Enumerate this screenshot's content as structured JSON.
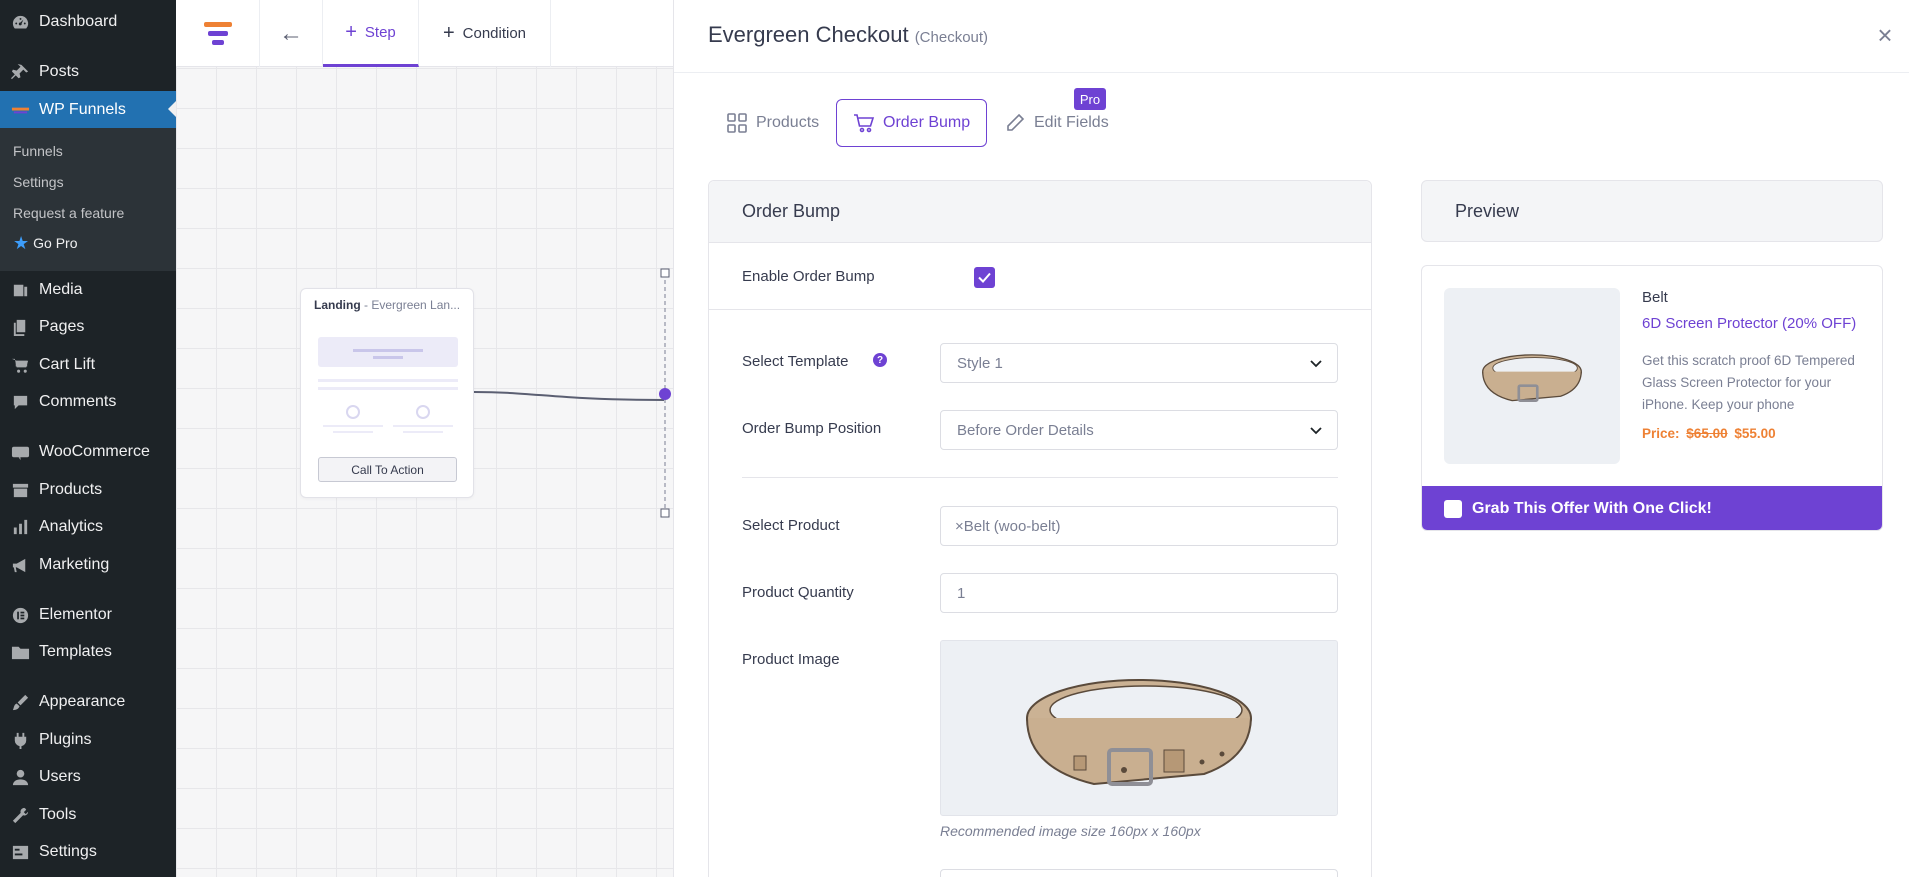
{
  "sidebar": {
    "items": [
      {
        "label": "Dashboard",
        "icon": "dashboard-icon"
      },
      {
        "label": "Posts",
        "icon": "pin-icon"
      },
      {
        "label": "WP Funnels",
        "icon": "wpfunnels-icon"
      },
      {
        "label": "Media",
        "icon": "media-icon"
      },
      {
        "label": "Pages",
        "icon": "pages-icon"
      },
      {
        "label": "Cart Lift",
        "icon": "cart-icon"
      },
      {
        "label": "Comments",
        "icon": "comment-icon"
      },
      {
        "label": "WooCommerce",
        "icon": "woo-icon"
      },
      {
        "label": "Products",
        "icon": "archive-icon"
      },
      {
        "label": "Analytics",
        "icon": "chart-icon"
      },
      {
        "label": "Marketing",
        "icon": "megaphone-icon"
      },
      {
        "label": "Elementor",
        "icon": "elementor-icon"
      },
      {
        "label": "Templates",
        "icon": "folder-icon"
      },
      {
        "label": "Appearance",
        "icon": "brush-icon"
      },
      {
        "label": "Plugins",
        "icon": "plugin-icon"
      },
      {
        "label": "Users",
        "icon": "user-icon"
      },
      {
        "label": "Tools",
        "icon": "wrench-icon"
      },
      {
        "label": "Settings",
        "icon": "settings-icon"
      }
    ],
    "submenu": [
      "Funnels",
      "Settings",
      "Request a feature",
      "Go Pro"
    ]
  },
  "canvas": {
    "tabs": {
      "step": "Step",
      "condition": "Condition"
    },
    "node": {
      "type": "Landing",
      "name": "- Evergreen Lan...",
      "cta": "Call To Action"
    }
  },
  "panel": {
    "title": "Evergreen Checkout",
    "type": "(Checkout)",
    "tabs": {
      "products": "Products",
      "order_bump": "Order Bump",
      "edit_fields": "Edit Fields",
      "pro_badge": "Pro"
    },
    "order_bump": {
      "heading": "Order Bump",
      "enable_label": "Enable Order Bump",
      "enabled": true,
      "template_label": "Select Template",
      "template_value": "Style 1",
      "help": "?",
      "position_label": "Order Bump Position",
      "position_value": "Before Order Details",
      "product_label": "Select Product",
      "product_remove": "×",
      "product_value": "Belt (woo-belt)",
      "quantity_label": "Product Quantity",
      "quantity_value": "1",
      "image_label": "Product Image",
      "image_hint": "Recommended image size 160px x 160px"
    },
    "preview": {
      "heading": "Preview",
      "product_name": "Belt",
      "offer_title": "6D Screen Protector (20% OFF)",
      "description": "Get this scratch proof 6D Tempered Glass Screen Protector for your iPhone. Keep your phone",
      "price_label": "Price:",
      "old_price": "$65.00",
      "new_price": "$55.00",
      "cta": "Grab This Offer With One Click!"
    }
  },
  "colors": {
    "accent": "#6e42d3",
    "wp_sidebar": "#1d2327",
    "wp_active": "#2271b1",
    "price": "#ee8134"
  }
}
